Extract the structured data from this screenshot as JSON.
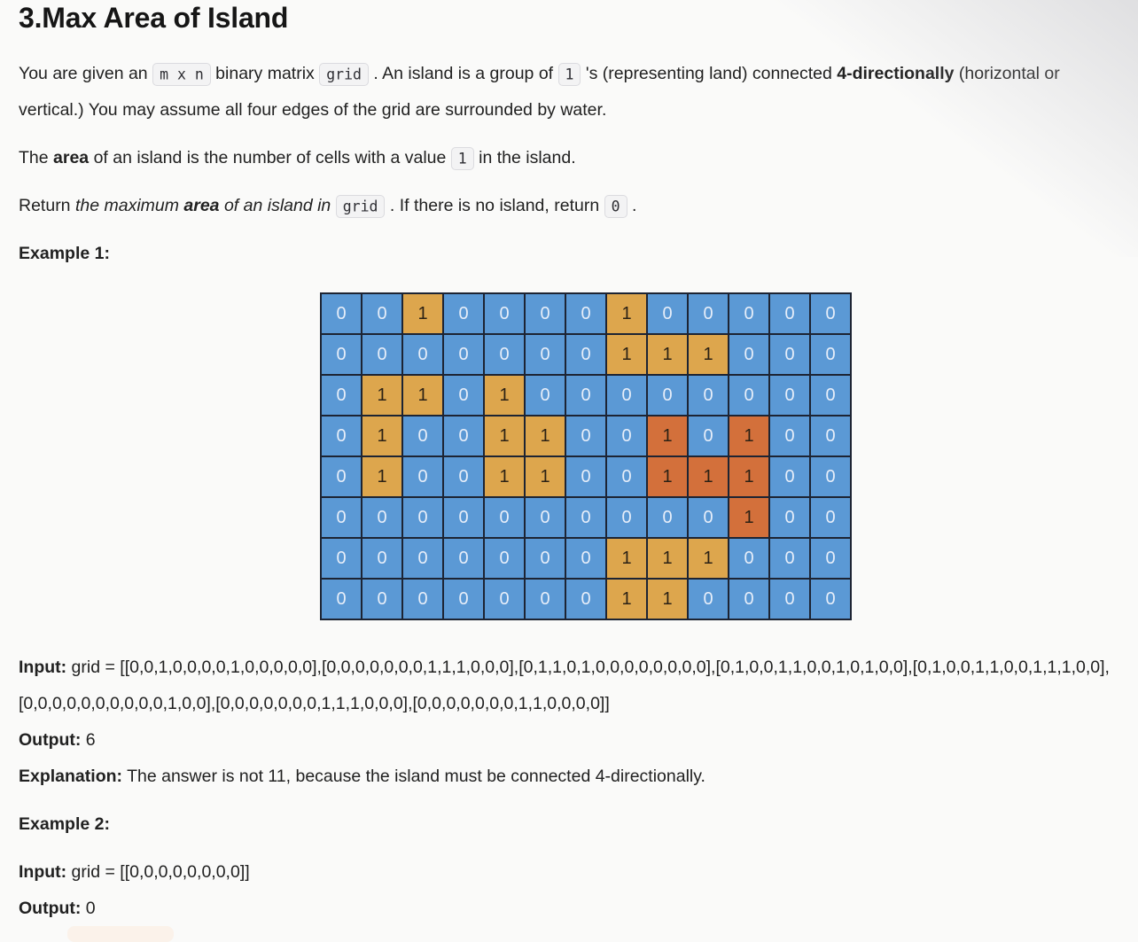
{
  "page": {
    "title": "3.Max Area of Island"
  },
  "colors": {
    "water_cell": "#5b99d5",
    "land_cell": "#dda64d",
    "max_island_cell": "#d3703b",
    "cell_border": "#1d2433",
    "water_text": "#e7eef9",
    "land_text": "#2b2115",
    "code_bg": "#f3f3f4",
    "code_border": "#dbdbdf"
  },
  "description": {
    "p1": [
      {
        "t": "You are given an ",
        "s": "n"
      },
      {
        "t": "m x n",
        "s": "c"
      },
      {
        "t": " binary matrix ",
        "s": "n"
      },
      {
        "t": "grid",
        "s": "c"
      },
      {
        "t": " . An island is a group of ",
        "s": "n"
      },
      {
        "t": "1",
        "s": "c"
      },
      {
        "t": " 's (representing land) connected ",
        "s": "n"
      },
      {
        "t": "4-directionally",
        "s": "b"
      },
      {
        "t": " (horizontal or vertical.) You may assume all four edges of the grid are surrounded by water.",
        "s": "n"
      }
    ],
    "p2": [
      {
        "t": "The ",
        "s": "n"
      },
      {
        "t": "area",
        "s": "b"
      },
      {
        "t": " of an island is the number of cells with a value ",
        "s": "n"
      },
      {
        "t": "1",
        "s": "c"
      },
      {
        "t": " in the island.",
        "s": "n"
      }
    ],
    "p3": [
      {
        "t": "Return ",
        "s": "n"
      },
      {
        "t": "the maximum ",
        "s": "i"
      },
      {
        "t": "area",
        "s": "bi"
      },
      {
        "t": " of an island in",
        "s": "i"
      },
      {
        "t": " ",
        "s": "n"
      },
      {
        "t": "grid",
        "s": "c"
      },
      {
        "t": " . If there is no island, return ",
        "s": "n"
      },
      {
        "t": "0",
        "s": "c"
      },
      {
        "t": " .",
        "s": "n"
      }
    ]
  },
  "grid": {
    "cells": [
      [
        0,
        0,
        1,
        0,
        0,
        0,
        0,
        1,
        0,
        0,
        0,
        0,
        0
      ],
      [
        0,
        0,
        0,
        0,
        0,
        0,
        0,
        1,
        1,
        1,
        0,
        0,
        0
      ],
      [
        0,
        1,
        1,
        0,
        1,
        0,
        0,
        0,
        0,
        0,
        0,
        0,
        0
      ],
      [
        0,
        1,
        0,
        0,
        1,
        1,
        0,
        0,
        1,
        0,
        1,
        0,
        0
      ],
      [
        0,
        1,
        0,
        0,
        1,
        1,
        0,
        0,
        1,
        1,
        1,
        0,
        0
      ],
      [
        0,
        0,
        0,
        0,
        0,
        0,
        0,
        0,
        0,
        0,
        1,
        0,
        0
      ],
      [
        0,
        0,
        0,
        0,
        0,
        0,
        0,
        1,
        1,
        1,
        0,
        0,
        0
      ],
      [
        0,
        0,
        0,
        0,
        0,
        0,
        0,
        1,
        1,
        0,
        0,
        0,
        0
      ]
    ],
    "max_island_cells": [
      [
        3,
        8
      ],
      [
        3,
        10
      ],
      [
        4,
        8
      ],
      [
        4,
        9
      ],
      [
        4,
        10
      ],
      [
        5,
        10
      ]
    ]
  },
  "example1": {
    "heading": "Example 1:",
    "input_label": "Input:",
    "input_value": " grid = [[0,0,1,0,0,0,0,1,0,0,0,0,0],[0,0,0,0,0,0,0,1,1,1,0,0,0],[0,1,1,0,1,0,0,0,0,0,0,0,0],[0,1,0,0,1,1,0,0,1,0,1,0,0],[0,1,0,0,1,1,0,0,1,1,1,0,0],[0,0,0,0,0,0,0,0,0,0,1,0,0],[0,0,0,0,0,0,0,1,1,1,0,0,0],[0,0,0,0,0,0,0,1,1,0,0,0,0]]",
    "output_label": "Output:",
    "output_value": " 6",
    "explanation_label": "Explanation:",
    "explanation_value": " The answer is not 11, because the island must be connected 4-directionally."
  },
  "example2": {
    "heading": "Example 2:",
    "input_label": "Input:",
    "input_value": " grid = [[0,0,0,0,0,0,0,0]]",
    "output_label": "Output:",
    "output_value": " 0"
  }
}
